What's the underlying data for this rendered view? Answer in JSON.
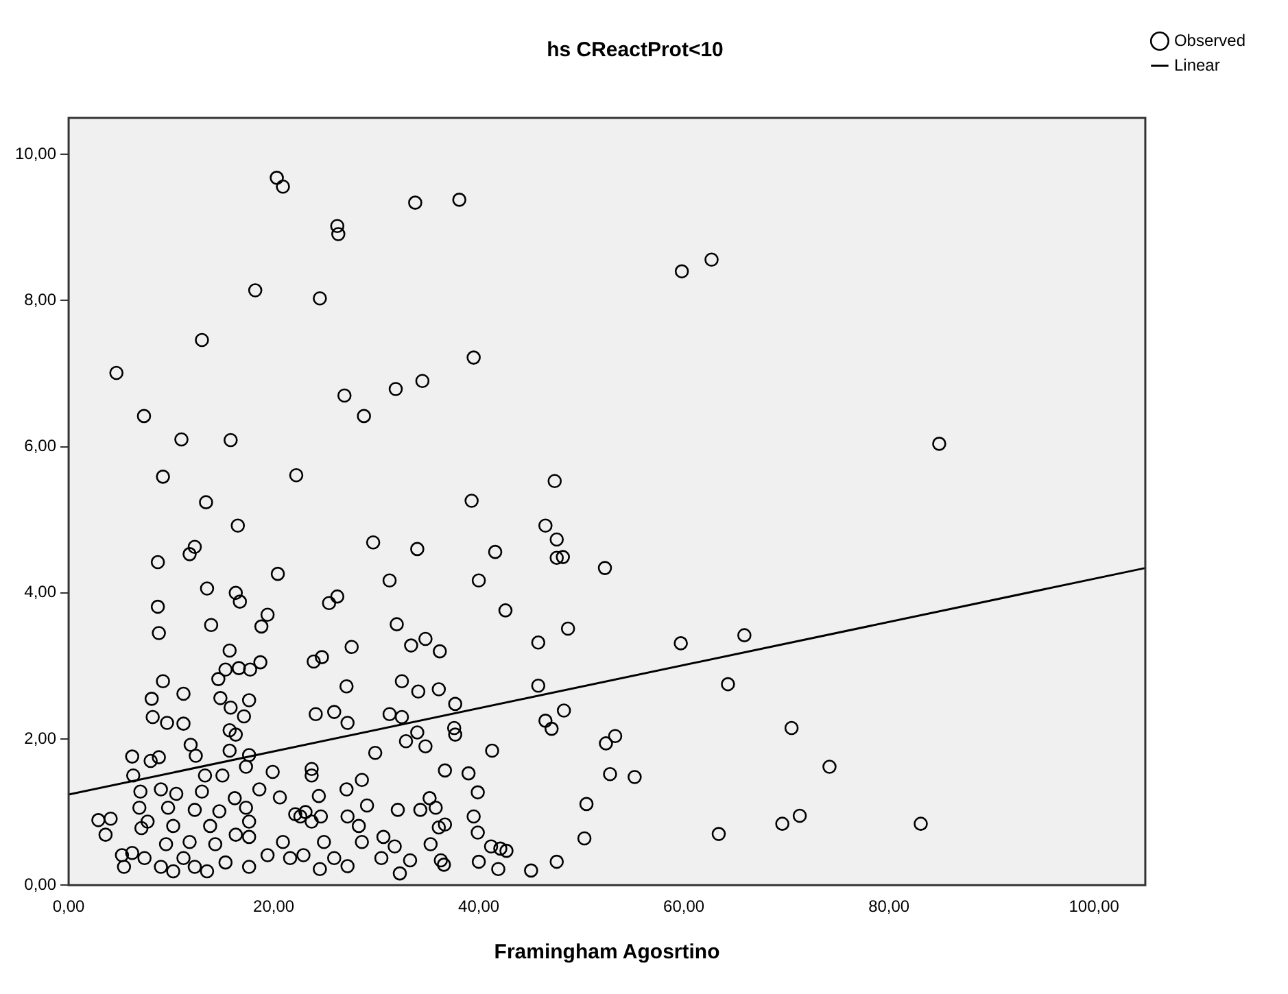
{
  "chart_data": {
    "type": "scatter",
    "title": "hs CReactProt<10",
    "xlabel": "Framingham Agosrtino",
    "xlim": [
      0,
      105
    ],
    "ylim": [
      0,
      10.5
    ],
    "xticks": [
      {
        "value": 0,
        "label": "0,00"
      },
      {
        "value": 20,
        "label": "20,00"
      },
      {
        "value": 40,
        "label": "40,00"
      },
      {
        "value": 60,
        "label": "60,00"
      },
      {
        "value": 80,
        "label": "80,00"
      },
      {
        "value": 100,
        "label": "100,00"
      }
    ],
    "yticks": [
      {
        "value": 0,
        "label": "0,00"
      },
      {
        "value": 2,
        "label": "2,00"
      },
      {
        "value": 4,
        "label": "4,00"
      },
      {
        "value": 6,
        "label": "6,00"
      },
      {
        "value": 8,
        "label": "8,00"
      },
      {
        "value": 10,
        "label": "10,00"
      }
    ],
    "grid": false,
    "legend": "top right",
    "series": [
      {
        "name": "Observed",
        "type": "scatter",
        "color": "#000000",
        "marker": "circle",
        "x": [
          4.66,
          7.35,
          11.0,
          15.8,
          9.2,
          13.4,
          16.5,
          13.0,
          18.2,
          20.3,
          20.9,
          24.5,
          26.2,
          26.3,
          33.8,
          38.1,
          22.2,
          26.9,
          28.8,
          31.9,
          34.5,
          39.5,
          39.3,
          47.4,
          46.5,
          59.8,
          62.7,
          84.9,
          8.7,
          11.8,
          12.3,
          20.4,
          13.5,
          8.7,
          8.8,
          13.9,
          16.3,
          16.7,
          19.4,
          18.8,
          15.7,
          15.3,
          16.6,
          17.7,
          18.7,
          14.6,
          9.2,
          8.1,
          11.2,
          14.8,
          15.8,
          17.6,
          17.1,
          8.2,
          9.6,
          11.2,
          15.7,
          16.3,
          11.9,
          12.4,
          6.2,
          8.0,
          8.8,
          15.7,
          17.6,
          17.3,
          19.9,
          6.3,
          13.3,
          15.0,
          7.0,
          9.0,
          10.5,
          13.0,
          18.6,
          16.2,
          20.6,
          6.9,
          9.7,
          12.3,
          14.7,
          17.3,
          2.9,
          4.1,
          3.6,
          7.1,
          7.7,
          10.2,
          13.8,
          17.6,
          5.2,
          6.2,
          7.4,
          9.0,
          10.2,
          11.2,
          12.3,
          13.5,
          15.3,
          17.6,
          19.4,
          5.4,
          9.5,
          11.8,
          14.3,
          16.3,
          17.6,
          20.9,
          21.6,
          22.9,
          22.1,
          22.6,
          23.1,
          23.7,
          23.7,
          23.7,
          24.4,
          24.6,
          24.9,
          24.5,
          25.9,
          24.1,
          25.9,
          27.2,
          23.9,
          24.7,
          25.4,
          26.2,
          27.6,
          27.1,
          27.1,
          28.6,
          29.1,
          27.2,
          28.3,
          28.6,
          27.2,
          29.7,
          29.9,
          31.3,
          32.0,
          31.3,
          32.5,
          32.5,
          34.1,
          32.9,
          34.8,
          34.0,
          32.1,
          34.3,
          30.7,
          31.8,
          32.3,
          33.3,
          30.5,
          34.0,
          33.4,
          34.8,
          36.2,
          36.1,
          37.7,
          37.6,
          37.7,
          35.2,
          35.8,
          36.7,
          36.1,
          35.3,
          36.3,
          36.6,
          36.7,
          39.0,
          39.9,
          39.5,
          39.9,
          40.0,
          41.2,
          42.1,
          42.7,
          41.9,
          41.3,
          40.0,
          41.6,
          42.6,
          45.1,
          45.8,
          45.8,
          46.5,
          47.1,
          47.6,
          47.6,
          48.2,
          48.7,
          48.3,
          47.6,
          50.5,
          50.3,
          52.3,
          52.4,
          53.3,
          52.8,
          59.7,
          65.9,
          64.3,
          55.2,
          70.5,
          74.2,
          63.4,
          69.6,
          71.3,
          83.1
        ],
        "values": [
          7.01,
          6.42,
          6.1,
          6.09,
          5.59,
          5.24,
          4.92,
          7.46,
          8.14,
          9.68,
          9.56,
          8.03,
          9.02,
          8.91,
          9.34,
          9.38,
          5.61,
          6.7,
          6.42,
          6.79,
          6.9,
          7.22,
          5.26,
          5.53,
          4.92,
          8.4,
          8.56,
          6.04,
          4.42,
          4.53,
          4.63,
          4.26,
          4.06,
          3.81,
          3.45,
          3.56,
          4.0,
          3.88,
          3.7,
          3.54,
          3.21,
          2.95,
          2.97,
          2.95,
          3.05,
          2.82,
          2.79,
          2.55,
          2.62,
          2.56,
          2.43,
          2.53,
          2.31,
          2.3,
          2.22,
          2.21,
          2.12,
          2.06,
          1.92,
          1.77,
          1.76,
          1.7,
          1.75,
          1.84,
          1.78,
          1.62,
          1.55,
          1.5,
          1.5,
          1.5,
          1.28,
          1.31,
          1.25,
          1.28,
          1.31,
          1.19,
          1.2,
          1.06,
          1.06,
          1.03,
          1.01,
          1.06,
          0.89,
          0.91,
          0.69,
          0.78,
          0.87,
          0.81,
          0.81,
          0.87,
          0.41,
          0.44,
          0.37,
          0.25,
          0.19,
          0.37,
          0.25,
          0.19,
          0.31,
          0.25,
          0.41,
          0.25,
          0.56,
          0.59,
          0.56,
          0.69,
          0.66,
          0.59,
          0.37,
          0.41,
          0.97,
          0.94,
          1.0,
          0.87,
          1.59,
          1.5,
          1.22,
          0.94,
          0.59,
          0.22,
          0.37,
          2.34,
          2.37,
          2.22,
          3.06,
          3.12,
          3.86,
          3.95,
          3.26,
          2.72,
          1.31,
          1.44,
          1.09,
          0.94,
          0.81,
          0.59,
          0.26,
          4.69,
          1.81,
          4.17,
          3.57,
          2.34,
          2.3,
          2.79,
          2.65,
          1.97,
          1.9,
          2.09,
          1.03,
          1.03,
          0.66,
          0.53,
          0.16,
          0.34,
          0.37,
          4.6,
          3.28,
          3.37,
          3.2,
          2.68,
          2.48,
          2.15,
          2.06,
          1.19,
          1.06,
          0.83,
          0.79,
          0.56,
          0.34,
          0.28,
          1.57,
          1.53,
          1.27,
          0.94,
          0.72,
          0.32,
          0.53,
          0.5,
          0.47,
          0.22,
          1.84,
          4.17,
          4.56,
          3.76,
          0.2,
          3.32,
          2.73,
          2.25,
          2.14,
          4.73,
          4.48,
          4.49,
          3.51,
          2.39,
          0.32,
          1.11,
          0.64,
          4.34,
          1.94,
          2.04,
          1.52,
          3.31,
          3.42,
          2.75,
          1.48,
          2.15,
          1.62,
          0.7,
          0.84,
          0.95,
          0.84
        ]
      },
      {
        "name": "Linear",
        "type": "line",
        "color": "#000000",
        "marker": "none",
        "line_style": "solid",
        "x": [
          0,
          105
        ],
        "values": [
          1.24,
          4.34
        ]
      }
    ]
  }
}
